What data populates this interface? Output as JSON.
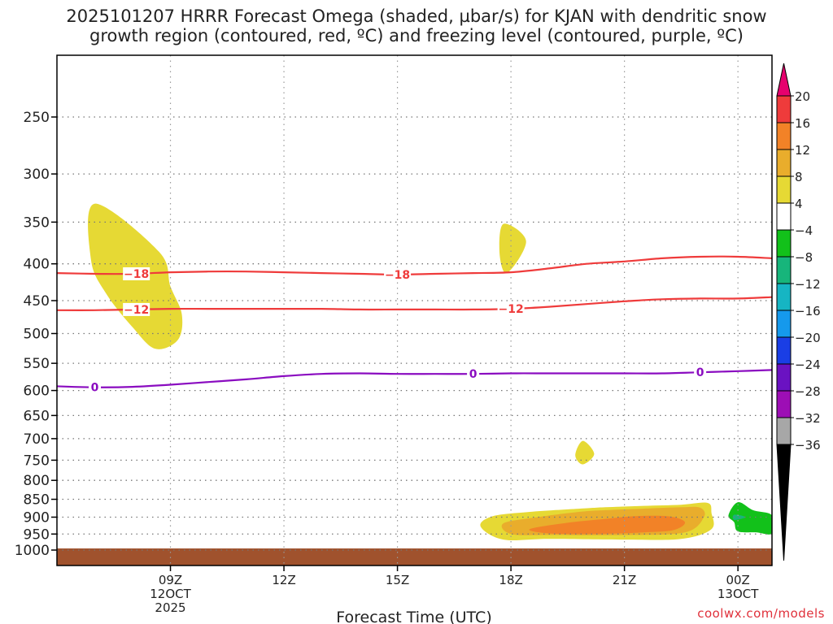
{
  "title_line1": "2025101207 HRRR Forecast Omega (shaded, µbar/s) for KJAN with dendritic snow",
  "title_line2": "growth region (contoured, red, ºC) and freezing level (contoured, purple, ºC)",
  "credit": "coolwx.com/models",
  "chart_data": {
    "type": "contour",
    "xlabel": "Forecast Time (UTC)",
    "ylabel": "",
    "x_range_hours": [
      6.0,
      24.9
    ],
    "y_log_scale": true,
    "y_inverted": true,
    "ylim": [
      200,
      1030
    ],
    "grid": true,
    "x_ticks": [
      {
        "hour": 9,
        "label": "09Z",
        "sub1": "12OCT",
        "sub2": "2025"
      },
      {
        "hour": 12,
        "label": "12Z",
        "sub1": "",
        "sub2": ""
      },
      {
        "hour": 15,
        "label": "15Z",
        "sub1": "",
        "sub2": ""
      },
      {
        "hour": 18,
        "label": "18Z",
        "sub1": "",
        "sub2": ""
      },
      {
        "hour": 21,
        "label": "21Z",
        "sub1": "",
        "sub2": ""
      },
      {
        "hour": 24,
        "label": "00Z",
        "sub1": "13OCT",
        "sub2": ""
      }
    ],
    "y_ticks": [
      250,
      300,
      350,
      400,
      450,
      500,
      550,
      600,
      650,
      700,
      750,
      800,
      850,
      900,
      950,
      1000
    ],
    "colorbar": {
      "levels": [
        "20",
        "16",
        "12",
        "8",
        "4",
        "−4",
        "−8",
        "−12",
        "−16",
        "−20",
        "−24",
        "−28",
        "−32",
        "−36"
      ],
      "colors": [
        "#e6006e",
        "#ef3b3b",
        "#f28227",
        "#e9ad2c",
        "#e6d934",
        "#ffffff",
        "#12c11a",
        "#17b57b",
        "#16b5c3",
        "#1599ec",
        "#1a3ee5",
        "#6a12c2",
        "#9d0eb5",
        "#a7a7a7",
        "#000000"
      ]
    },
    "contours": [
      {
        "name": "-18",
        "color": "#ef3b3b",
        "label": "−18",
        "points": [
          [
            6.0,
            412
          ],
          [
            7.0,
            413
          ],
          [
            8.0,
            413
          ],
          [
            9.0,
            411
          ],
          [
            10.0,
            410
          ],
          [
            11.0,
            410
          ],
          [
            12.0,
            411
          ],
          [
            13.0,
            412
          ],
          [
            14.0,
            413
          ],
          [
            15.0,
            414
          ],
          [
            16.0,
            413
          ],
          [
            17.0,
            412
          ],
          [
            18.0,
            411
          ],
          [
            19.0,
            406
          ],
          [
            20.0,
            400
          ],
          [
            21.0,
            397
          ],
          [
            22.0,
            393
          ],
          [
            23.0,
            391
          ],
          [
            24.0,
            391
          ],
          [
            24.9,
            393
          ]
        ],
        "label_positions": [
          [
            8.1,
            413
          ],
          [
            15.0,
            414
          ]
        ]
      },
      {
        "name": "-12",
        "color": "#ef3b3b",
        "label": "−12",
        "points": [
          [
            6.0,
            464
          ],
          [
            7.0,
            464
          ],
          [
            8.0,
            463
          ],
          [
            9.0,
            462
          ],
          [
            10.0,
            462
          ],
          [
            11.0,
            462
          ],
          [
            12.0,
            462
          ],
          [
            13.0,
            462
          ],
          [
            14.0,
            463
          ],
          [
            15.0,
            463
          ],
          [
            16.0,
            463
          ],
          [
            17.0,
            463
          ],
          [
            18.0,
            462
          ],
          [
            19.0,
            459
          ],
          [
            20.0,
            455
          ],
          [
            21.0,
            451
          ],
          [
            22.0,
            448
          ],
          [
            23.0,
            447
          ],
          [
            24.0,
            447
          ],
          [
            24.9,
            445
          ]
        ],
        "label_positions": [
          [
            8.1,
            463
          ],
          [
            18.0,
            462
          ]
        ]
      },
      {
        "name": "0",
        "color": "#8a0cc0",
        "label": "0",
        "points": [
          [
            6.0,
            592
          ],
          [
            7.0,
            594
          ],
          [
            8.0,
            593
          ],
          [
            9.0,
            589
          ],
          [
            10.0,
            584
          ],
          [
            11.0,
            579
          ],
          [
            12.0,
            573
          ],
          [
            13.0,
            569
          ],
          [
            14.0,
            568
          ],
          [
            15.0,
            569
          ],
          [
            16.0,
            569
          ],
          [
            17.0,
            569
          ],
          [
            18.0,
            568
          ],
          [
            19.0,
            568
          ],
          [
            20.0,
            568
          ],
          [
            21.0,
            568
          ],
          [
            22.0,
            568
          ],
          [
            23.0,
            566
          ],
          [
            24.0,
            564
          ],
          [
            24.9,
            562
          ]
        ],
        "label_positions": [
          [
            7.0,
            594
          ],
          [
            17.0,
            569
          ],
          [
            23.0,
            566
          ]
        ]
      }
    ],
    "shaded_regions": [
      {
        "value": "4 to 8",
        "color": "#e6d934",
        "points": [
          [
            7.0,
            330
          ],
          [
            8.7,
            385
          ],
          [
            9.0,
            430
          ],
          [
            9.3,
            470
          ],
          [
            9.2,
            510
          ],
          [
            8.6,
            525
          ],
          [
            8.0,
            490
          ],
          [
            7.3,
            440
          ],
          [
            6.9,
            395
          ]
        ]
      },
      {
        "value": "4 to 8",
        "color": "#e6d934",
        "points": [
          [
            17.8,
            352
          ],
          [
            18.4,
            372
          ],
          [
            17.9,
            412
          ],
          [
            17.7,
            387
          ]
        ]
      },
      {
        "value": "4 to 8",
        "color": "#e6d934",
        "points": [
          [
            19.9,
            705
          ],
          [
            20.2,
            735
          ],
          [
            19.9,
            760
          ],
          [
            19.7,
            738
          ]
        ]
      },
      {
        "value": "4 to 8",
        "color": "#e6d934",
        "points": [
          [
            17.2,
            928
          ],
          [
            17.5,
            898
          ],
          [
            18.5,
            885
          ],
          [
            19.8,
            876
          ],
          [
            20.5,
            872
          ],
          [
            21.5,
            868
          ],
          [
            22.5,
            865
          ],
          [
            23.2,
            860
          ],
          [
            23.3,
            888
          ],
          [
            23.3,
            935
          ],
          [
            22.5,
            965
          ],
          [
            21.0,
            967
          ],
          [
            19.0,
            965
          ],
          [
            17.8,
            967
          ]
        ]
      },
      {
        "value": "8 to 12",
        "color": "#e9ad2c",
        "points": [
          [
            17.8,
            918
          ],
          [
            18.7,
            900
          ],
          [
            19.8,
            885
          ],
          [
            20.5,
            880
          ],
          [
            21.5,
            876
          ],
          [
            22.5,
            872
          ],
          [
            23.0,
            873
          ],
          [
            23.1,
            900
          ],
          [
            22.6,
            945
          ],
          [
            21.0,
            953
          ],
          [
            19.0,
            953
          ],
          [
            18.0,
            950
          ]
        ]
      },
      {
        "value": "12 to 16",
        "color": "#f28227",
        "points": [
          [
            18.5,
            935
          ],
          [
            19.6,
            915
          ],
          [
            20.5,
            905
          ],
          [
            21.3,
            897
          ],
          [
            22.2,
            898
          ],
          [
            22.6,
            915
          ],
          [
            22.3,
            938
          ],
          [
            21.5,
            945
          ],
          [
            20.2,
            950
          ],
          [
            19.0,
            948
          ]
        ]
      },
      {
        "value": "-4 to -8",
        "color": "#12c11a",
        "points": [
          [
            24.0,
            858
          ],
          [
            24.4,
            880
          ],
          [
            24.9,
            895
          ],
          [
            24.9,
            948
          ],
          [
            24.5,
            945
          ],
          [
            24.0,
            942
          ],
          [
            23.9,
            915
          ],
          [
            23.75,
            895
          ]
        ]
      },
      {
        "value": "-8 to -12",
        "color": "#17b57b",
        "points": [
          [
            23.9,
            893
          ],
          [
            24.2,
            900
          ],
          [
            23.9,
            908
          ]
        ]
      }
    ],
    "terrain": {
      "color": "#a0522d",
      "top_hpa": 1000
    }
  }
}
